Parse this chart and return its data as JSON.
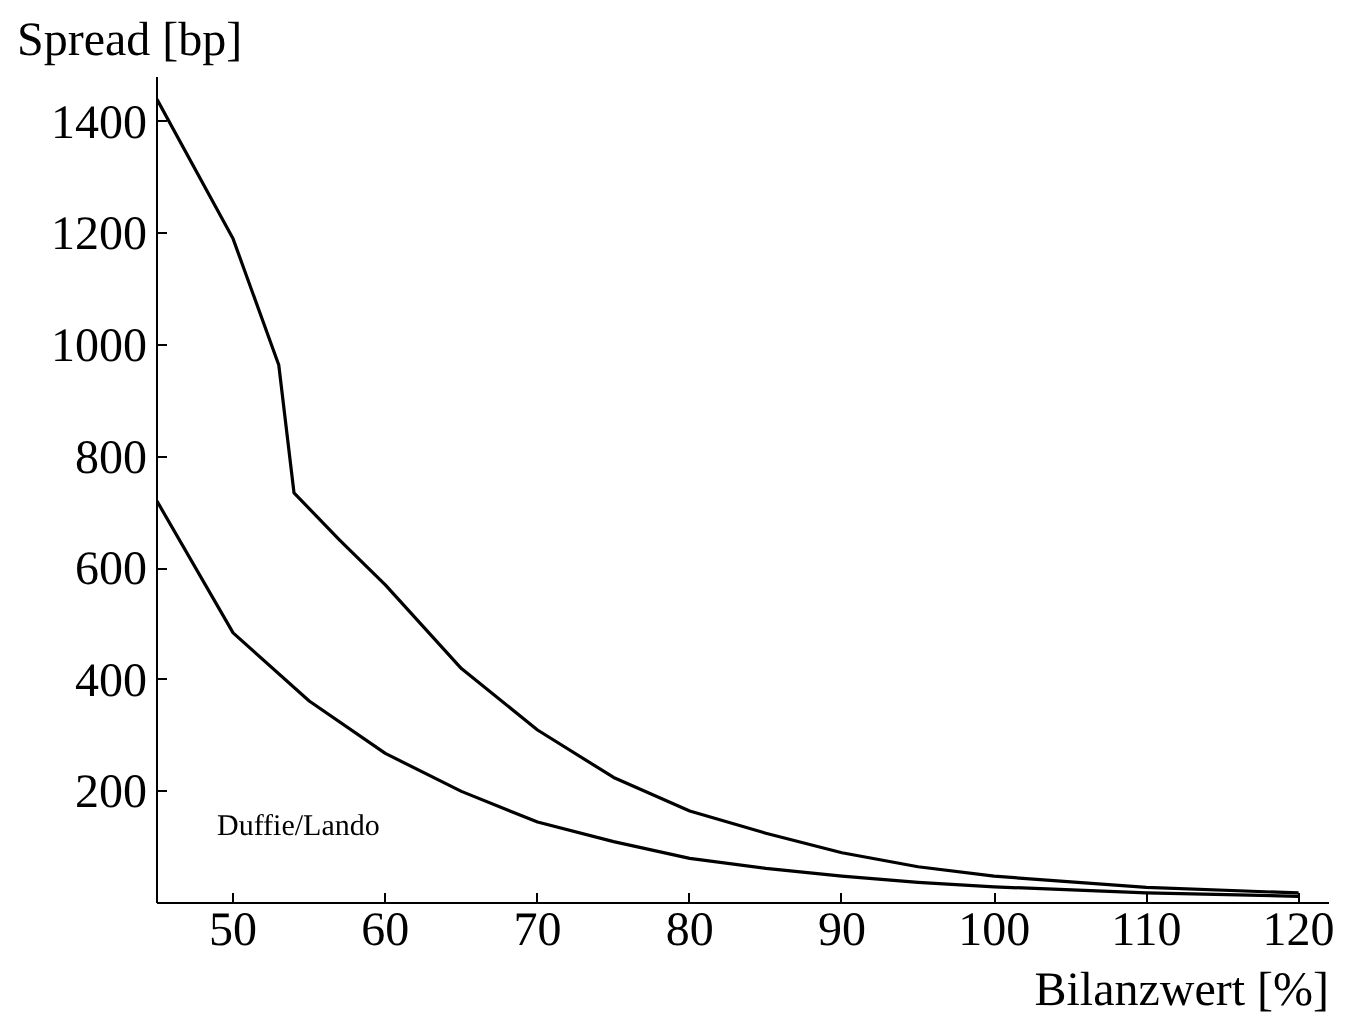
{
  "chart_data": {
    "type": "line",
    "xlabel": "Bilanzwert [%]",
    "ylabel": "Spread [bp]",
    "xlim": [
      45,
      122
    ],
    "ylim": [
      0,
      1480
    ],
    "xticks": [
      50,
      60,
      70,
      80,
      90,
      100,
      110,
      120
    ],
    "yticks": [
      200,
      400,
      600,
      800,
      1000,
      1200,
      1400
    ],
    "grid": false,
    "marker": "none",
    "line_style": "solid",
    "annotations": [
      "Duffie/Lando"
    ],
    "series": [
      {
        "color": "#000000",
        "x": [
          45,
          50,
          53,
          54,
          57,
          60,
          65,
          70,
          75,
          80,
          85,
          90,
          95,
          100,
          110,
          120
        ],
        "values": [
          1440,
          1190,
          964,
          735,
          650,
          570,
          420,
          310,
          225,
          165,
          125,
          90,
          65,
          48,
          28,
          18
        ]
      },
      {
        "color": "#000000",
        "x": [
          45,
          50,
          55,
          60,
          65,
          70,
          75,
          80,
          85,
          90,
          95,
          100,
          110,
          120
        ],
        "values": [
          720,
          484,
          362,
          268,
          200,
          145,
          110,
          80,
          62,
          48,
          37,
          29,
          18,
          12
        ]
      }
    ]
  }
}
